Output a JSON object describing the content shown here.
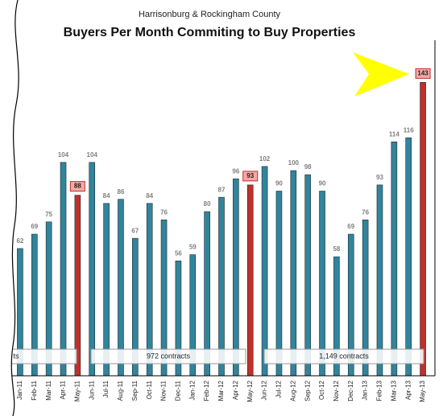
{
  "chart_data": {
    "type": "bar",
    "subtitle": "Harrisonburg & Rockingham County",
    "title": "Buyers Per Month Commiting to Buy Properties",
    "categories": [
      "Jan-11",
      "Feb-11",
      "Mar-11",
      "Apr-11",
      "May-11",
      "Jun-11",
      "Jul-11",
      "Aug-11",
      "Sep-11",
      "Oct-11",
      "Nov-11",
      "Dec-11",
      "Jan-12",
      "Feb-12",
      "Mar-12",
      "Apr-12",
      "May-12",
      "Jun-12",
      "Jul-12",
      "Aug-12",
      "Sep-12",
      "Oct-12",
      "Nov-12",
      "Dec-12",
      "Jan-13",
      "Feb-13",
      "Mar-13",
      "Apr-13",
      "May-13"
    ],
    "values": [
      62,
      69,
      75,
      104,
      88,
      104,
      84,
      86,
      67,
      84,
      76,
      56,
      59,
      80,
      87,
      96,
      93,
      102,
      90,
      100,
      98,
      90,
      58,
      69,
      76,
      93,
      114,
      116,
      143
    ],
    "colors": [
      "#31849b",
      "#31849b",
      "#31849b",
      "#31849b",
      "#c0302b",
      "#31849b",
      "#31849b",
      "#31849b",
      "#31849b",
      "#31849b",
      "#31849b",
      "#31849b",
      "#31849b",
      "#31849b",
      "#31849b",
      "#31849b",
      "#c0302b",
      "#31849b",
      "#31849b",
      "#31849b",
      "#31849b",
      "#31849b",
      "#31849b",
      "#31849b",
      "#31849b",
      "#31849b",
      "#31849b",
      "#31849b",
      "#c0302b"
    ],
    "ylim": [
      0,
      160
    ],
    "annotations": [
      "ts",
      "972 contracts",
      "1,149 contracts"
    ]
  }
}
